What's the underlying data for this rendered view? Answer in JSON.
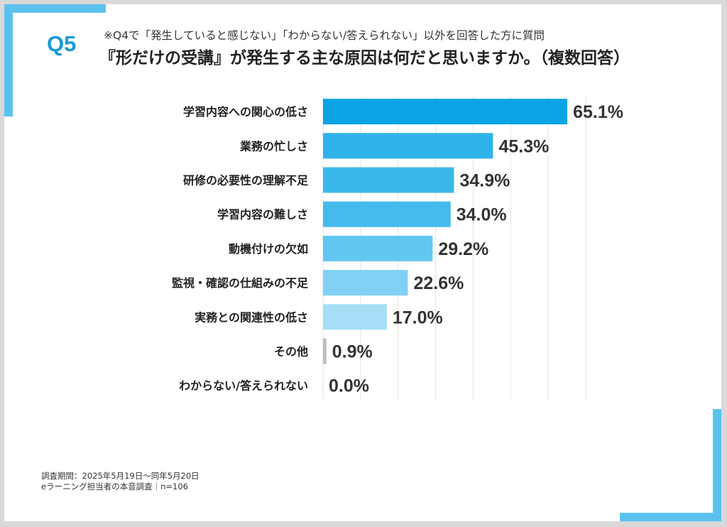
{
  "header": {
    "question_number": "Q5",
    "note": "※Q4で「発生していると感じない」「わからない/答えられない」以外を回答した方に質問",
    "question": "『形だけの受講』が発生する主な原因は何だと思いますか。（複数回答）"
  },
  "colors": {
    "accent": "#5bc2ef",
    "qnum": "#1a9ad6",
    "bars": [
      "#0ba3e4",
      "#2fb3ea",
      "#3ab8ec",
      "#45bbed",
      "#62c6f0",
      "#80d1f3",
      "#a5def6",
      "#bdbdbd",
      "#bdbdbd"
    ],
    "gridline": "#e3e3e3",
    "label_text": "#222222",
    "value_text": "#333333"
  },
  "chart_data": {
    "type": "bar",
    "orientation": "horizontal",
    "categories": [
      "学習内容への関心の低さ",
      "業務の忙しさ",
      "研修の必要性の理解不足",
      "学習内容の難しさ",
      "動機付けの欠如",
      "監視・確認の仕組みの不足",
      "実務との関連性の低さ",
      "その他",
      "わからない/答えられない"
    ],
    "values": [
      65.1,
      45.3,
      34.9,
      34.0,
      29.2,
      22.6,
      17.0,
      0.9,
      0.0
    ],
    "value_labels": [
      "65.1%",
      "45.3%",
      "34.9%",
      "34.0%",
      "29.2%",
      "22.6%",
      "17.0%",
      "0.9%",
      "0.0%"
    ],
    "xlim": [
      0,
      70
    ],
    "grid": true,
    "legend": "none"
  },
  "footer": {
    "line1": "調査期間：2025年5月19日〜同年5月20日",
    "line2": "eラーニング担当者の本音調査｜n=106"
  }
}
